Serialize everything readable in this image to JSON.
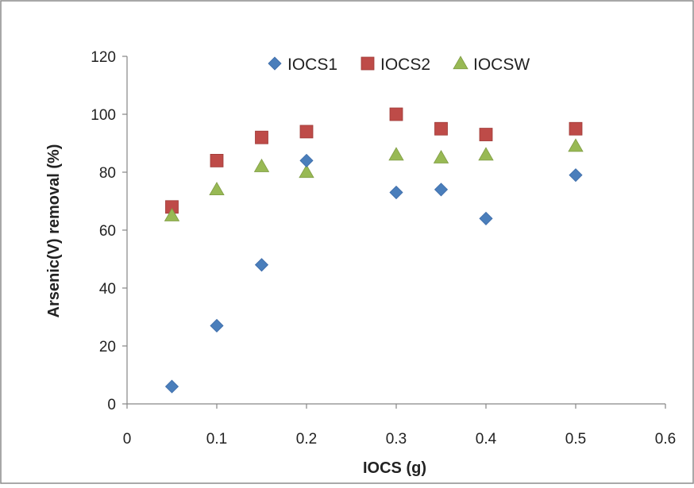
{
  "chart_data": {
    "type": "scatter",
    "title": "",
    "xlabel": "IOCS (g)",
    "ylabel": "Arsenic(V) removal  (%)",
    "xlim": [
      0,
      0.6
    ],
    "ylim": [
      0,
      120
    ],
    "xticks": [
      "0",
      "0.1",
      "0.2",
      "0.3",
      "0.4",
      "0.5",
      "0.6"
    ],
    "yticks": [
      "0",
      "20",
      "40",
      "60",
      "80",
      "100",
      "120"
    ],
    "grid": false,
    "legend_position": "top",
    "series": [
      {
        "name": "IOCS1",
        "marker": "diamond",
        "color": "#4A7EBB",
        "x": [
          0.05,
          0.1,
          0.15,
          0.2,
          0.3,
          0.35,
          0.4,
          0.5
        ],
        "y": [
          6,
          27,
          48,
          84,
          73,
          74,
          64,
          79
        ]
      },
      {
        "name": "IOCS2",
        "marker": "square",
        "color": "#BE4B48",
        "x": [
          0.05,
          0.1,
          0.15,
          0.2,
          0.3,
          0.35,
          0.4,
          0.5
        ],
        "y": [
          68,
          84,
          92,
          94,
          100,
          95,
          93,
          95
        ]
      },
      {
        "name": "IOCSW",
        "marker": "triangle",
        "color": "#98B954",
        "x": [
          0.05,
          0.1,
          0.15,
          0.2,
          0.3,
          0.35,
          0.4,
          0.5
        ],
        "y": [
          65,
          74,
          82,
          80,
          86,
          85,
          86,
          89
        ]
      }
    ]
  }
}
